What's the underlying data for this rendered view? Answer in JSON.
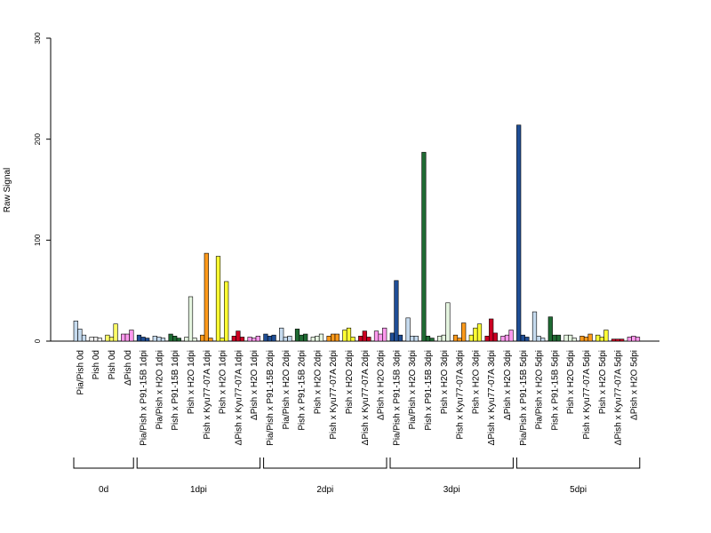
{
  "chart_data": {
    "type": "bar",
    "title": "",
    "xlabel": "",
    "ylabel": "Raw Signal",
    "ylim": [
      0,
      300
    ],
    "yticks": [
      0,
      100,
      200,
      300
    ],
    "grid": false,
    "categories": [
      {
        "label": "Pia/Pish 0d",
        "color": "#c6dbef",
        "values": [
          20,
          12,
          6
        ]
      },
      {
        "label": "Pish 0d",
        "color": "#f0f0f0",
        "values": [
          4,
          4,
          3
        ]
      },
      {
        "label": "Pish 0d",
        "color": "#ffff66",
        "values": [
          6,
          4,
          17
        ]
      },
      {
        "label": "ΔPish 0d",
        "color": "#ff99ee",
        "values": [
          7,
          7,
          11
        ]
      },
      {
        "label": "Pia/Pish x P91-15B 1dpi",
        "color": "#1f4e96",
        "values": [
          6,
          4,
          3
        ]
      },
      {
        "label": "Pia/Pish x H2O 1dpi",
        "color": "#c6dbef",
        "values": [
          5,
          4,
          3
        ]
      },
      {
        "label": "Pish x P91-15B 1dpi",
        "color": "#1f6b33",
        "values": [
          7,
          5,
          3
        ]
      },
      {
        "label": "Pish x H2O 1dpi",
        "color": "#e5f5e0",
        "values": [
          4,
          44,
          3
        ]
      },
      {
        "label": "Pish x Kyu77-07A 1dpi",
        "color": "#ff9a1a",
        "values": [
          6,
          87,
          3
        ]
      },
      {
        "label": "Pish x H2O 1dpi",
        "color": "#ffff33",
        "values": [
          84,
          3,
          59
        ]
      },
      {
        "label": "ΔPish x Kyu77-07A 1dpi",
        "color": "#cc0022",
        "values": [
          5,
          10,
          4
        ]
      },
      {
        "label": "ΔPish x H2O 1dpi",
        "color": "#ff99ee",
        "values": [
          4,
          3,
          5
        ]
      },
      {
        "label": "Pia/Pish x P91-15B 2dpi",
        "color": "#1f4e96",
        "values": [
          7,
          5,
          6
        ]
      },
      {
        "label": "Pia/Pish x H2O 2dpi",
        "color": "#c6dbef",
        "values": [
          13,
          4,
          5
        ]
      },
      {
        "label": "Pish x P91-15B 2dpi",
        "color": "#1f6b33",
        "values": [
          12,
          6,
          7
        ]
      },
      {
        "label": "Pish x H2O 2dpi",
        "color": "#e5f5e0",
        "values": [
          4,
          5,
          7
        ]
      },
      {
        "label": "Pish x Kyu77-07A 2dpi",
        "color": "#ff9a1a",
        "values": [
          5,
          7,
          7
        ]
      },
      {
        "label": "Pish x H2O 2dpi",
        "color": "#ffff33",
        "values": [
          11,
          13,
          4
        ]
      },
      {
        "label": "ΔPish x Kyu77-07A 2dpi",
        "color": "#cc0022",
        "values": [
          5,
          10,
          4
        ]
      },
      {
        "label": "ΔPish x H2O 2dpi",
        "color": "#ff99ee",
        "values": [
          10,
          7,
          13
        ]
      },
      {
        "label": "Pia/Pish x P91-15B 3dpi",
        "color": "#1f4e96",
        "values": [
          8,
          60,
          6
        ]
      },
      {
        "label": "Pia/Pish x H2O 3dpi",
        "color": "#c6dbef",
        "values": [
          23,
          5,
          5
        ]
      },
      {
        "label": "Pish x P91-15B 3dpi",
        "color": "#1f6b33",
        "values": [
          187,
          5,
          3
        ]
      },
      {
        "label": "Pish x H2O 3dpi",
        "color": "#e5f5e0",
        "values": [
          5,
          6,
          38
        ]
      },
      {
        "label": "Pish x Kyu77-07A 3dpi",
        "color": "#ff9a1a",
        "values": [
          6,
          3,
          18
        ]
      },
      {
        "label": "Pish x H2O 3dpi",
        "color": "#ffff33",
        "values": [
          6,
          13,
          17
        ]
      },
      {
        "label": "ΔPish x Kyu77-07A 3dpi",
        "color": "#cc0022",
        "values": [
          5,
          22,
          8
        ]
      },
      {
        "label": "ΔPish x H2O 3dpi",
        "color": "#ff99ee",
        "values": [
          5,
          6,
          11
        ]
      },
      {
        "label": "Pia/Pish x P91-15B 5dpi",
        "color": "#1f4e96",
        "values": [
          214,
          6,
          4
        ]
      },
      {
        "label": "Pia/Pish x H2O 5dpi",
        "color": "#c6dbef",
        "values": [
          29,
          5,
          3
        ]
      },
      {
        "label": "Pish x P91-15B 5dpi",
        "color": "#1f6b33",
        "values": [
          24,
          6,
          6
        ]
      },
      {
        "label": "Pish x H2O 5dpi",
        "color": "#e5f5e0",
        "values": [
          6,
          6,
          3
        ]
      },
      {
        "label": "Pish x Kyu77-07A 5dpi",
        "color": "#ff9a1a",
        "values": [
          5,
          4,
          7
        ]
      },
      {
        "label": "Pish x H2O 5dpi",
        "color": "#ffff33",
        "values": [
          6,
          4,
          11
        ]
      },
      {
        "label": "ΔPish x Kyu77-07A 5dpi",
        "color": "#cc0022",
        "values": [
          2,
          2,
          2
        ]
      },
      {
        "label": "ΔPish x H2O 5dpi",
        "color": "#ff99ee",
        "values": [
          4,
          5,
          4
        ]
      }
    ],
    "groups": [
      {
        "label": "0d",
        "start": 0,
        "end": 3
      },
      {
        "label": "1dpi",
        "start": 4,
        "end": 11
      },
      {
        "label": "2dpi",
        "start": 12,
        "end": 19
      },
      {
        "label": "3dpi",
        "start": 20,
        "end": 27
      },
      {
        "label": "5dpi",
        "start": 28,
        "end": 35
      }
    ]
  }
}
